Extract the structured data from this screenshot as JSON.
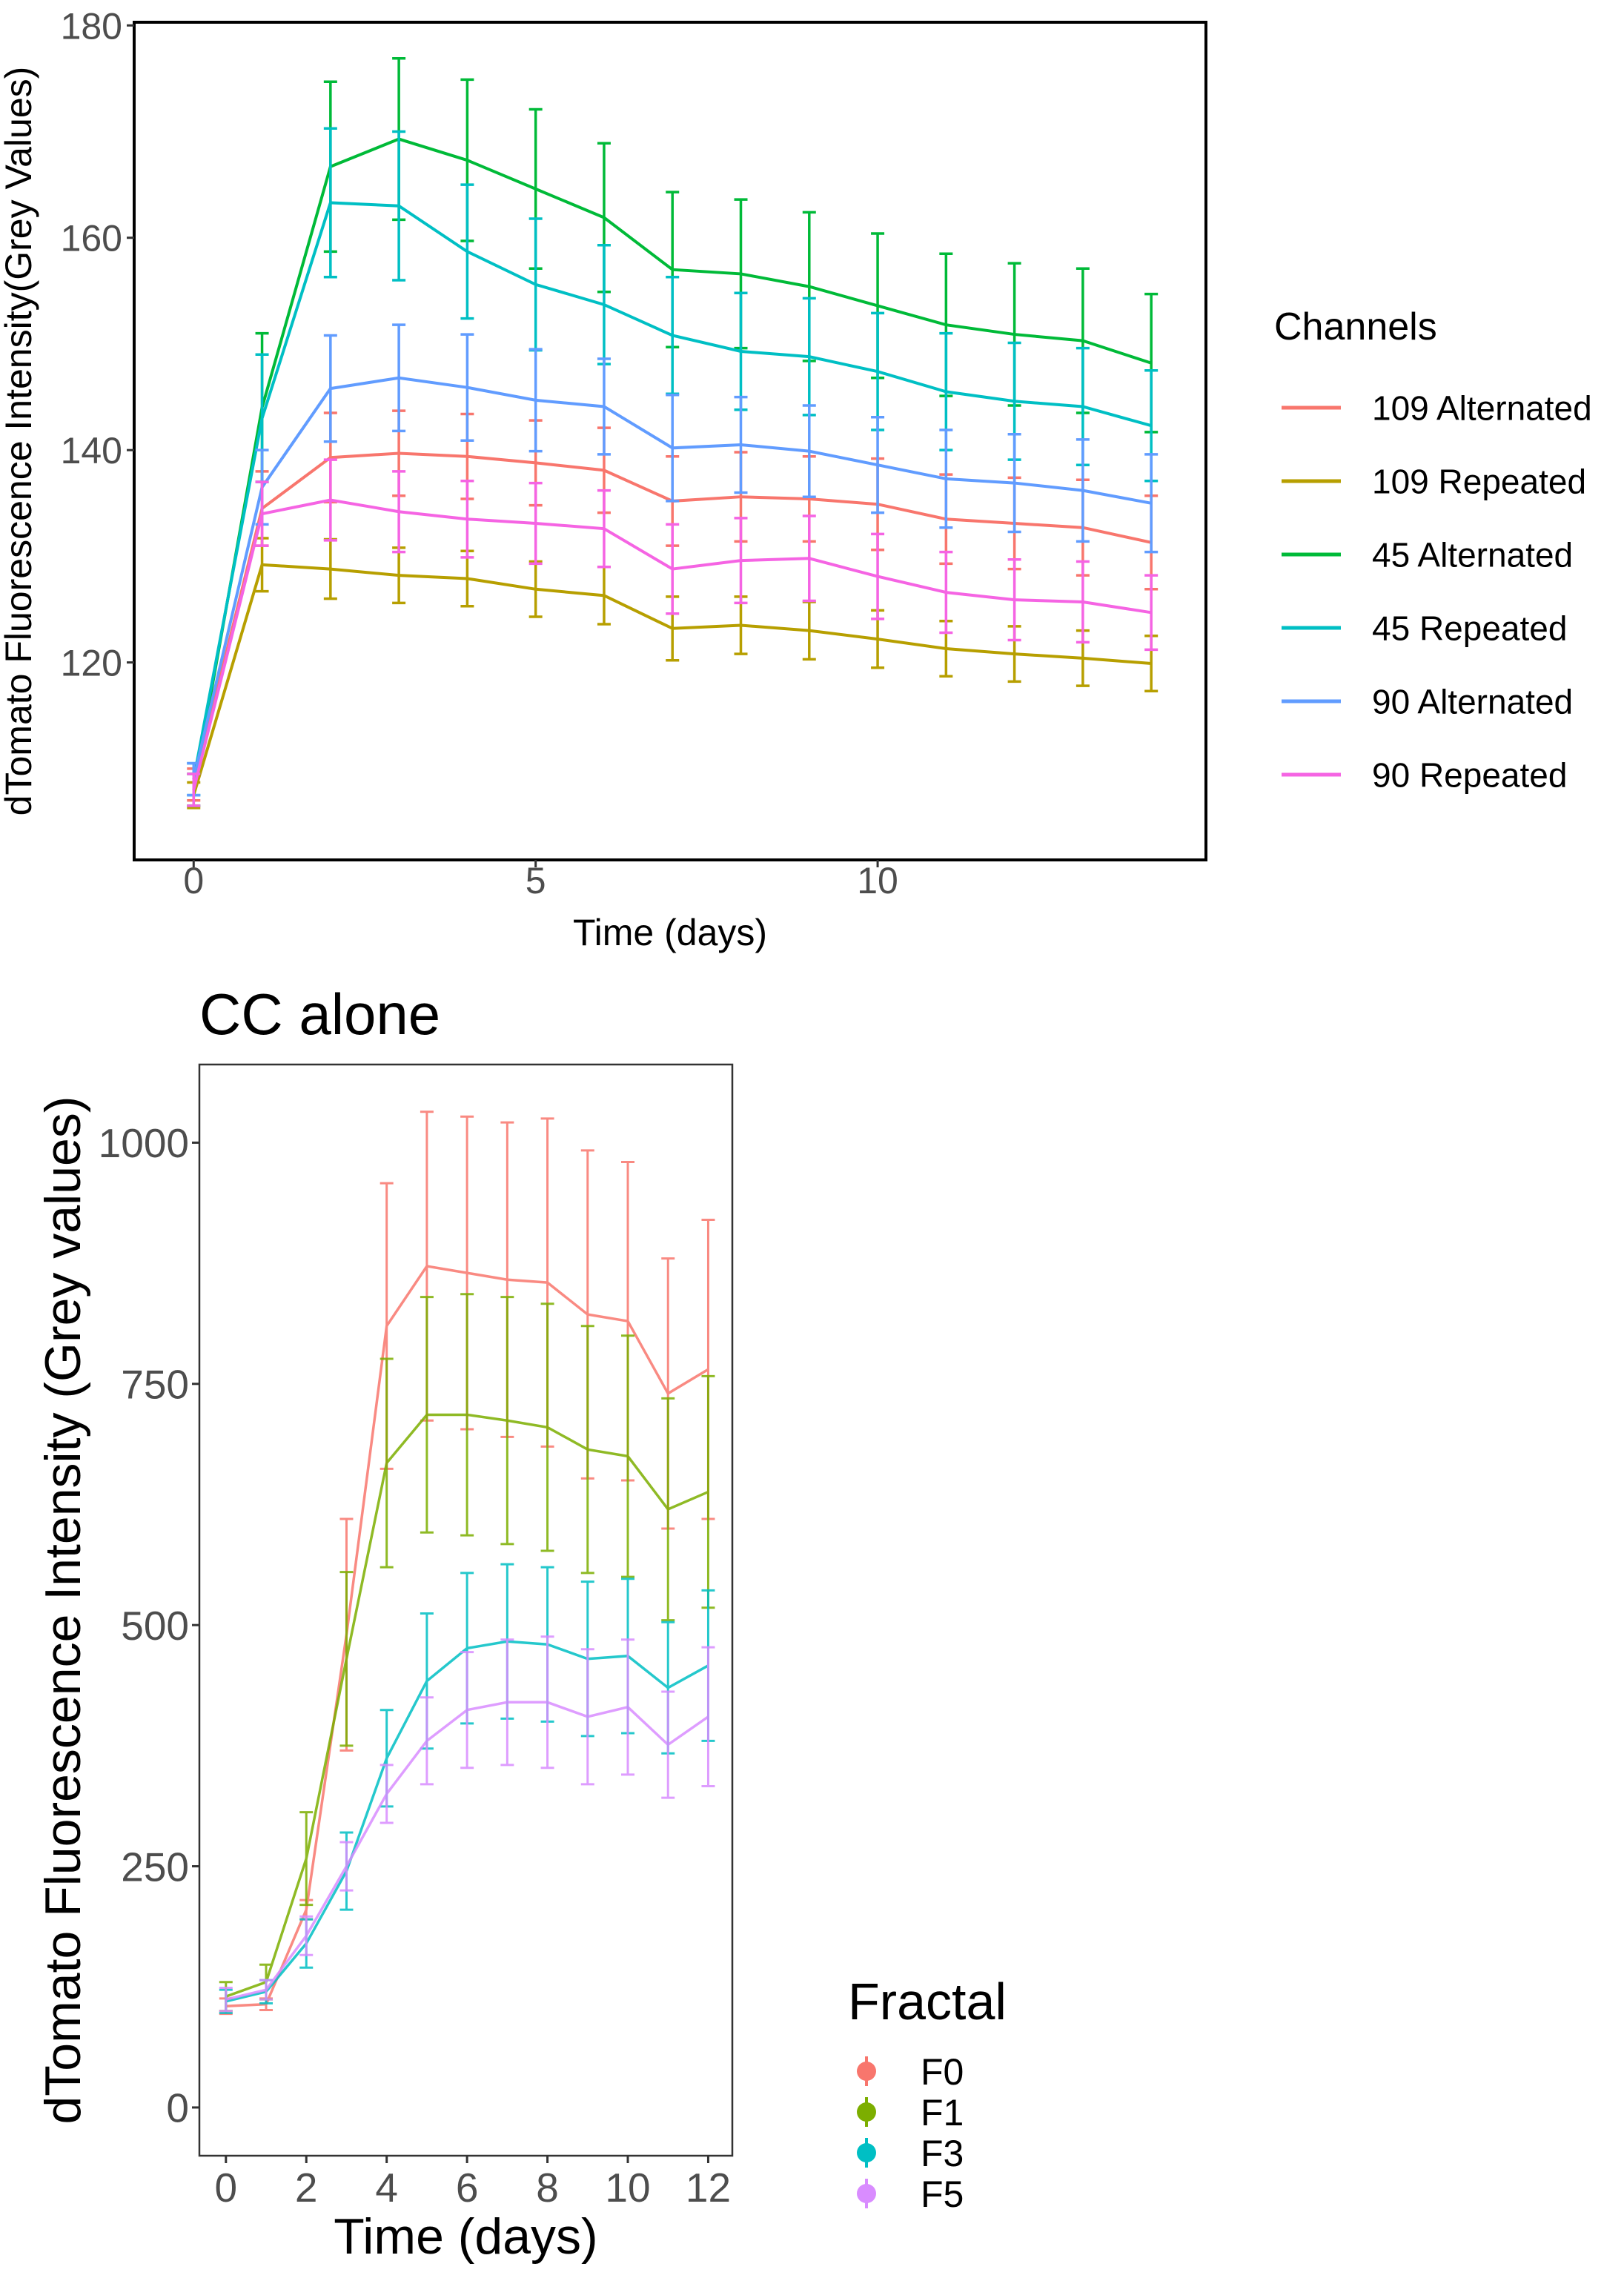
{
  "chart_data": [
    {
      "type": "line",
      "title": "",
      "xlabel": "Time (days)",
      "ylabel": "dTomato Fluorescence Intensity(Grey Values)",
      "xlim": [
        -0.87,
        14.8
      ],
      "ylim": [
        101.4,
        180.3
      ],
      "xticks": [
        "0",
        "5",
        "10"
      ],
      "yticks": [
        "120",
        "140",
        "160",
        "180"
      ],
      "grid": false,
      "error_bars": true,
      "legend": {
        "title": "Channels",
        "placement": "right"
      },
      "x": [
        0,
        1,
        2,
        3,
        4,
        5,
        6,
        7,
        8,
        9,
        10,
        11,
        12,
        13,
        14
      ],
      "series": [
        {
          "name": "109 Alternated",
          "color": "#F8766D",
          "values": [
            108.5,
            134.5,
            139.3,
            139.7,
            139.4,
            138.8,
            138.1,
            135.2,
            135.6,
            135.4,
            134.9,
            133.5,
            133.1,
            132.7,
            131.3
          ],
          "errors": [
            1.5,
            3.5,
            4.2,
            4,
            4,
            4,
            4,
            4.2,
            4.2,
            4,
            4.3,
            4.2,
            4.3,
            4.5,
            4.4
          ]
        },
        {
          "name": "109 Repeated",
          "color": "#B79F00",
          "values": [
            107.5,
            129.2,
            128.8,
            128.2,
            127.9,
            126.9,
            126.3,
            123.2,
            123.5,
            123,
            122.2,
            121.3,
            120.8,
            120.4,
            119.9
          ],
          "errors": [
            1.2,
            2.5,
            2.8,
            2.6,
            2.6,
            2.6,
            2.7,
            3,
            2.7,
            2.7,
            2.7,
            2.6,
            2.6,
            2.6,
            2.6
          ]
        },
        {
          "name": "45 Alternated",
          "color": "#00BA38",
          "values": [
            108,
            144,
            166.7,
            169.3,
            167.3,
            164.6,
            161.9,
            157,
            156.6,
            155.4,
            153.6,
            151.8,
            150.9,
            150.3,
            148.2
          ],
          "errors": [
            1.5,
            7,
            8,
            7.6,
            7.6,
            7.5,
            7,
            7.3,
            7,
            7,
            6.8,
            6.7,
            6.7,
            6.8,
            6.5
          ]
        },
        {
          "name": "45 Repeated",
          "color": "#00BFC4",
          "values": [
            109,
            143,
            163.3,
            163,
            158.7,
            155.6,
            153.7,
            150.8,
            149.3,
            148.8,
            147.4,
            145.5,
            144.6,
            144.1,
            142.3
          ],
          "errors": [
            1.5,
            6,
            7,
            7,
            6.3,
            6.2,
            5.6,
            5.5,
            5.5,
            5.5,
            5.5,
            5.5,
            5.5,
            5.5,
            5.2
          ]
        },
        {
          "name": "90 Alternated",
          "color": "#619CFF",
          "values": [
            109,
            136.5,
            145.8,
            146.8,
            145.9,
            144.7,
            144.1,
            140.2,
            140.5,
            139.9,
            138.6,
            137.3,
            136.9,
            136.2,
            135
          ],
          "errors": [
            1.5,
            3.5,
            5,
            5,
            5,
            4.8,
            4.5,
            5,
            4.5,
            4.3,
            4.5,
            4.6,
            4.6,
            4.8,
            4.6
          ]
        },
        {
          "name": "90 Repeated",
          "color": "#F564E3",
          "values": [
            108,
            134,
            135.3,
            134.2,
            133.5,
            133.1,
            132.6,
            128.8,
            129.6,
            129.8,
            128.1,
            126.6,
            125.9,
            125.7,
            124.7
          ],
          "errors": [
            1.5,
            3,
            3.8,
            3.8,
            3.6,
            3.8,
            3.6,
            4.2,
            4,
            4,
            4,
            3.8,
            3.8,
            3.8,
            3.5
          ]
        }
      ]
    },
    {
      "type": "line",
      "title": "CC alone",
      "xlabel": "Time (days)",
      "ylabel": "dTomato Fluorescence Intensity (Grey values)",
      "xlim": [
        -0.66,
        12.6
      ],
      "ylim": [
        -50,
        1081
      ],
      "xticks": [
        "0",
        "2",
        "4",
        "6",
        "8",
        "10",
        "12"
      ],
      "yticks": [
        "0",
        "250",
        "500",
        "750",
        "1000"
      ],
      "grid": false,
      "error_bars": true,
      "legend": {
        "title": "Fractal",
        "placement": "bottom-right"
      },
      "x": [
        0,
        1,
        2,
        3,
        4,
        5,
        6,
        7,
        8,
        9,
        10,
        11,
        12
      ],
      "series": [
        {
          "name": "F0",
          "color": "#F8766D",
          "values": [
            105,
            107,
            205,
            490,
            810,
            872,
            865,
            858,
            855,
            822,
            815,
            740,
            765
          ],
          "errors": [
            8,
            6,
            10,
            120,
            148,
            160,
            162,
            163,
            170,
            170,
            165,
            140,
            155
          ]
        },
        {
          "name": "F1",
          "color": "#7CAE00",
          "values": [
            115,
            130,
            258,
            465,
            668,
            718,
            718,
            712,
            705,
            682,
            675,
            620,
            638
          ],
          "errors": [
            15,
            18,
            48,
            90,
            108,
            122,
            125,
            128,
            128,
            128,
            125,
            115,
            120
          ]
        },
        {
          "name": "F3",
          "color": "#00BFC4",
          "values": [
            110,
            120,
            170,
            245,
            362,
            442,
            476,
            483,
            480,
            465,
            468,
            435,
            458
          ],
          "errors": [
            12,
            12,
            25,
            40,
            50,
            70,
            78,
            80,
            80,
            80,
            80,
            68,
            78
          ]
        },
        {
          "name": "F5",
          "color": "#D98CFF",
          "values": [
            112,
            122,
            178,
            250,
            325,
            380,
            412,
            420,
            420,
            405,
            415,
            376,
            405
          ],
          "errors": [
            12,
            10,
            20,
            25,
            30,
            45,
            60,
            65,
            68,
            70,
            70,
            55,
            72
          ]
        }
      ]
    }
  ]
}
